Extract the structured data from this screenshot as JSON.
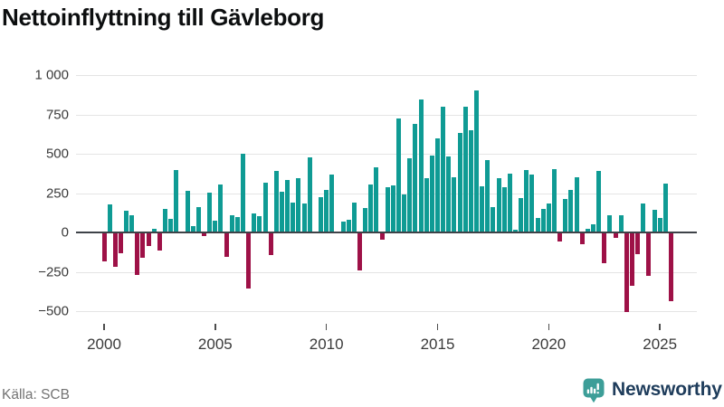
{
  "title": "Nettoinflyttning till Gävleborg",
  "source": "Källa: SCB",
  "branding": {
    "name": "Newsworthy"
  },
  "colors": {
    "positive_bar": "#0f9b94",
    "negative_bar": "#9e1147",
    "gridline": "#e4e4e4",
    "zero_line": "#3e4348",
    "title_text": "#0c0e0f",
    "axis_text": "#3a3a3a",
    "source_text": "#737373",
    "brand_text": "#1e3c5b",
    "brand_icon": "#3d9e98"
  },
  "chart_data": {
    "type": "bar",
    "title": "Nettoinflyttning till Gävleborg",
    "xlabel": "",
    "ylabel": "",
    "frequency": "quarterly",
    "ylim": [
      -500,
      1000
    ],
    "grid": true,
    "legend": false,
    "yticks": [
      {
        "value": 1000,
        "label": "1 000"
      },
      {
        "value": 750,
        "label": "750"
      },
      {
        "value": 500,
        "label": "500"
      },
      {
        "value": 250,
        "label": "250"
      },
      {
        "value": 0,
        "label": "0"
      },
      {
        "value": -250,
        "label": "−250"
      },
      {
        "value": -500,
        "label": "−500"
      }
    ],
    "xticks": [
      "2000",
      "2005",
      "2010",
      "2015",
      "2020",
      "2025"
    ],
    "series_by_year": [
      {
        "year": 2000,
        "q": [
          -182,
          179,
          -220,
          -134
        ]
      },
      {
        "year": 2001,
        "q": [
          138,
          110,
          -272,
          -163
        ]
      },
      {
        "year": 2002,
        "q": [
          -85,
          25,
          -115,
          149
        ]
      },
      {
        "year": 2003,
        "q": [
          88,
          398,
          0,
          264
        ]
      },
      {
        "year": 2004,
        "q": [
          38,
          163,
          -25,
          255
        ]
      },
      {
        "year": 2005,
        "q": [
          77,
          303,
          -153,
          111
        ]
      },
      {
        "year": 2006,
        "q": [
          96,
          500,
          -358,
          121
        ]
      },
      {
        "year": 2007,
        "q": [
          105,
          318,
          -144,
          393
        ]
      },
      {
        "year": 2008,
        "q": [
          261,
          331,
          192,
          347
        ]
      },
      {
        "year": 2009,
        "q": [
          182,
          479,
          0,
          225
        ]
      },
      {
        "year": 2010,
        "q": [
          270,
          370,
          0,
          71
        ]
      },
      {
        "year": 2011,
        "q": [
          83,
          192,
          -240,
          154
        ]
      },
      {
        "year": 2012,
        "q": [
          302,
          413,
          -48,
          288
        ]
      },
      {
        "year": 2013,
        "q": [
          298,
          725,
          240,
          471
        ]
      },
      {
        "year": 2014,
        "q": [
          688,
          846,
          342,
          490
        ]
      },
      {
        "year": 2015,
        "q": [
          596,
          798,
          485,
          350
        ]
      },
      {
        "year": 2016,
        "q": [
          631,
          798,
          650,
          904
        ]
      },
      {
        "year": 2017,
        "q": [
          292,
          458,
          163,
          346
        ]
      },
      {
        "year": 2018,
        "q": [
          285,
          371,
          19,
          221
        ]
      },
      {
        "year": 2019,
        "q": [
          394,
          369,
          92,
          150
        ]
      },
      {
        "year": 2020,
        "q": [
          183,
          400,
          -58,
          212
        ]
      },
      {
        "year": 2021,
        "q": [
          269,
          352,
          -73,
          23
        ]
      },
      {
        "year": 2022,
        "q": [
          52,
          388,
          -196,
          110
        ]
      },
      {
        "year": 2023,
        "q": [
          -35,
          110,
          -504,
          -337
        ]
      },
      {
        "year": 2024,
        "q": [
          -138,
          183,
          -273,
          144
        ]
      },
      {
        "year": 2025,
        "q": [
          90,
          308,
          -438
        ]
      }
    ]
  }
}
